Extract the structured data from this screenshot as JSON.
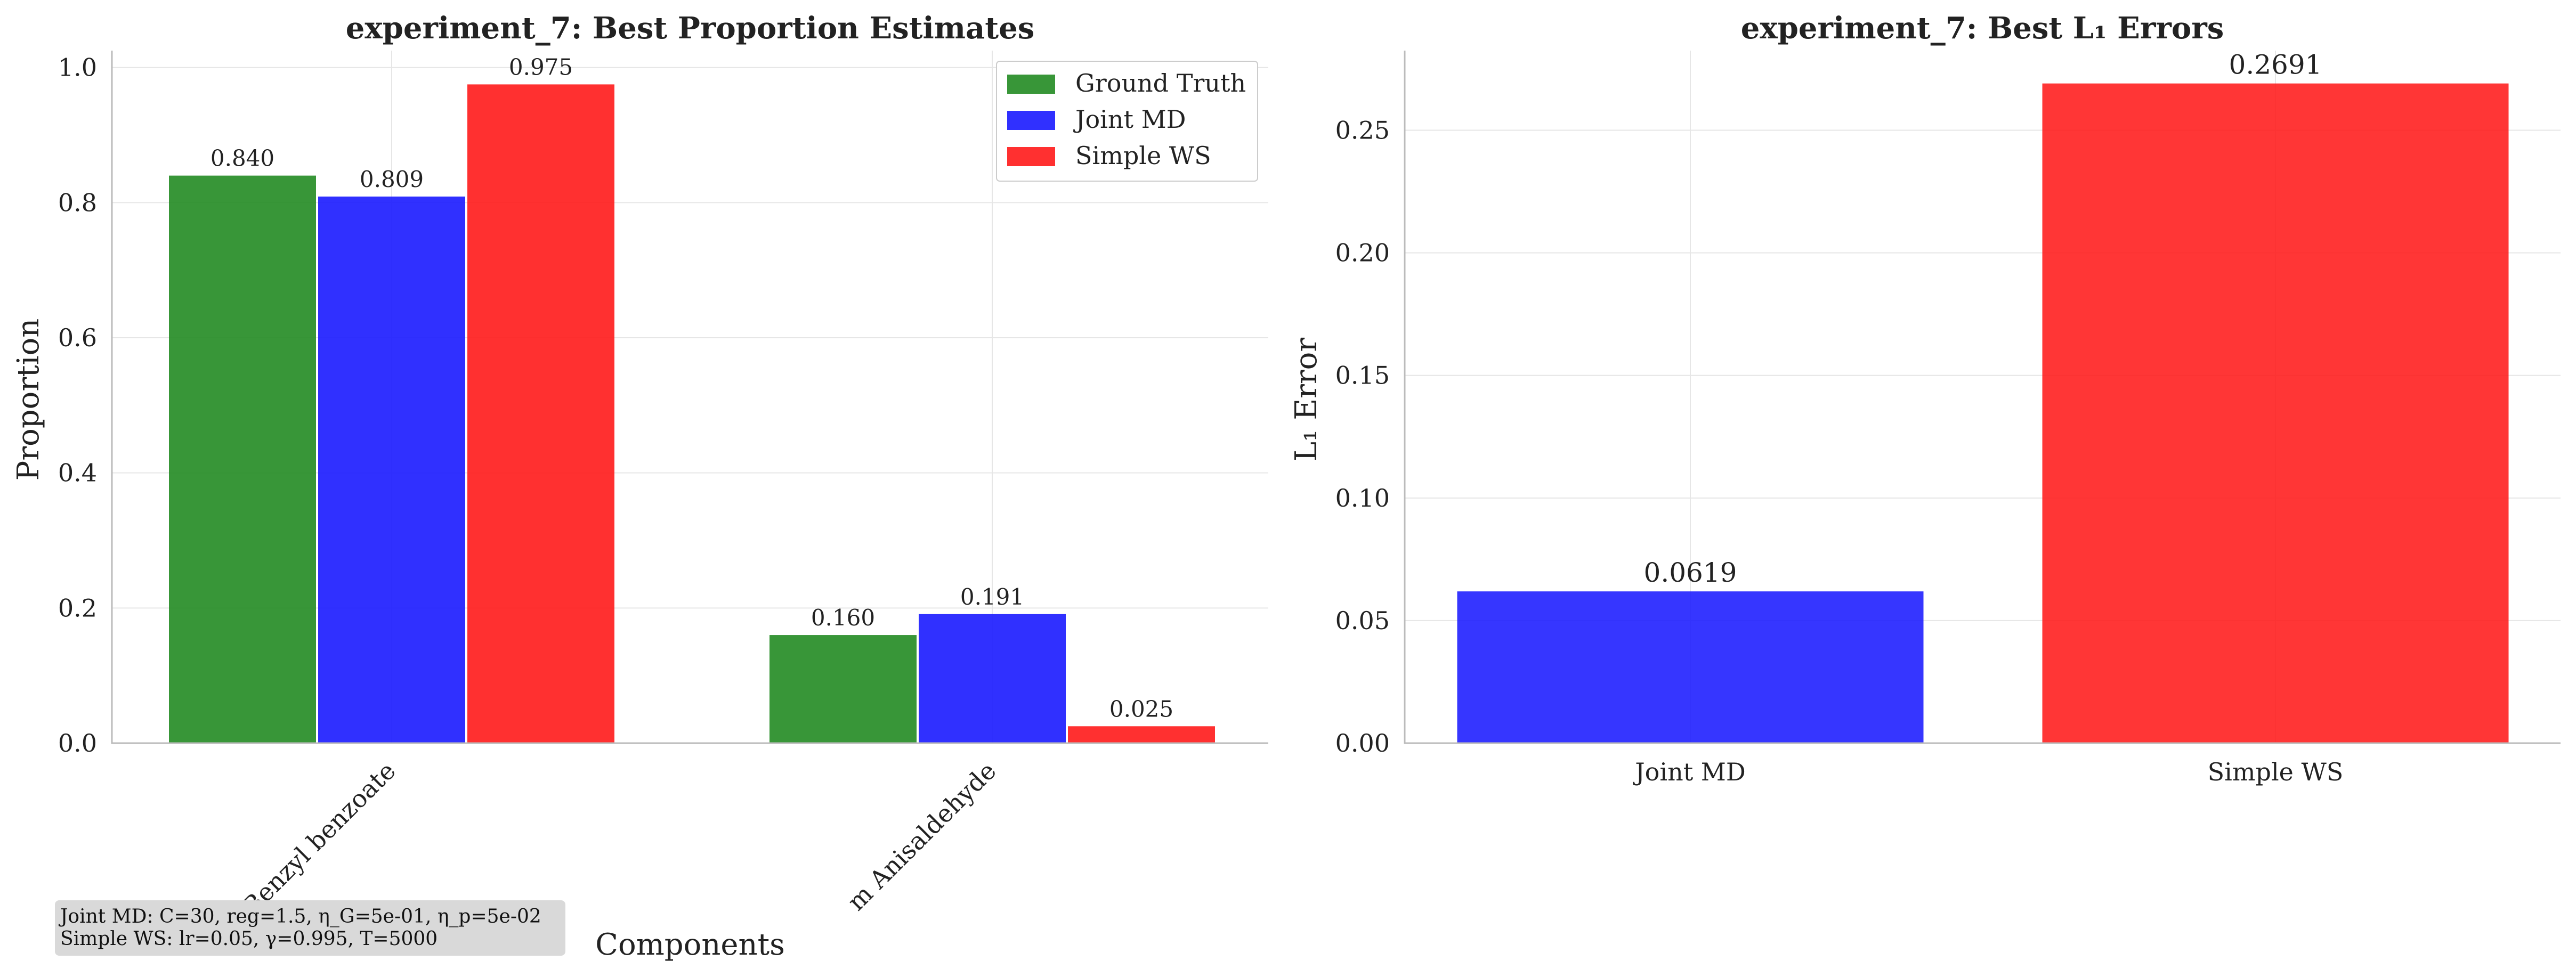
{
  "chart_data": [
    {
      "type": "bar",
      "title": "experiment_7: Best Proportion Estimates",
      "xlabel": "Components",
      "ylabel": "Proportion",
      "categories": [
        "Benzyl benzoate",
        "m Anisaldehyde"
      ],
      "series": [
        {
          "name": "Ground Truth",
          "values": [
            0.84,
            0.16
          ],
          "labels": [
            "0.840",
            "0.160"
          ],
          "color": "#228B22"
        },
        {
          "name": "Joint MD",
          "values": [
            0.809,
            0.191
          ],
          "labels": [
            "0.809",
            "0.191"
          ],
          "color": "#1a1aff"
        },
        {
          "name": "Simple WS",
          "values": [
            0.975,
            0.025
          ],
          "labels": [
            "0.975",
            "0.025"
          ],
          "color": "#ff1a1a"
        }
      ],
      "ylim": [
        0,
        1.025
      ],
      "yticks": [
        "0.0",
        "0.2",
        "0.4",
        "0.6",
        "0.8",
        "1.0"
      ],
      "ytick_values": [
        0,
        0.2,
        0.4,
        0.6,
        0.8,
        1.0
      ],
      "grid": true,
      "legend": "top-right",
      "annotation": [
        "Joint MD: C=30, reg=1.5, η_G=5e-01, η_p=5e-02",
        "Simple WS: lr=0.05, γ=0.995, T=5000"
      ]
    },
    {
      "type": "bar",
      "title": "experiment_7: Best L₁ Errors",
      "xlabel": "",
      "ylabel": "L₁ Error",
      "categories": [
        "Joint MD",
        "Simple WS"
      ],
      "values": [
        0.0619,
        0.2691
      ],
      "labels": [
        "0.0619",
        "0.2691"
      ],
      "colors": [
        "#1a1aff",
        "#ff1a1a"
      ],
      "ylim": [
        0,
        0.2825
      ],
      "yticks": [
        "0.00",
        "0.05",
        "0.10",
        "0.15",
        "0.20",
        "0.25"
      ],
      "ytick_values": [
        0,
        0.05,
        0.1,
        0.15,
        0.2,
        0.25
      ],
      "grid": true
    }
  ]
}
